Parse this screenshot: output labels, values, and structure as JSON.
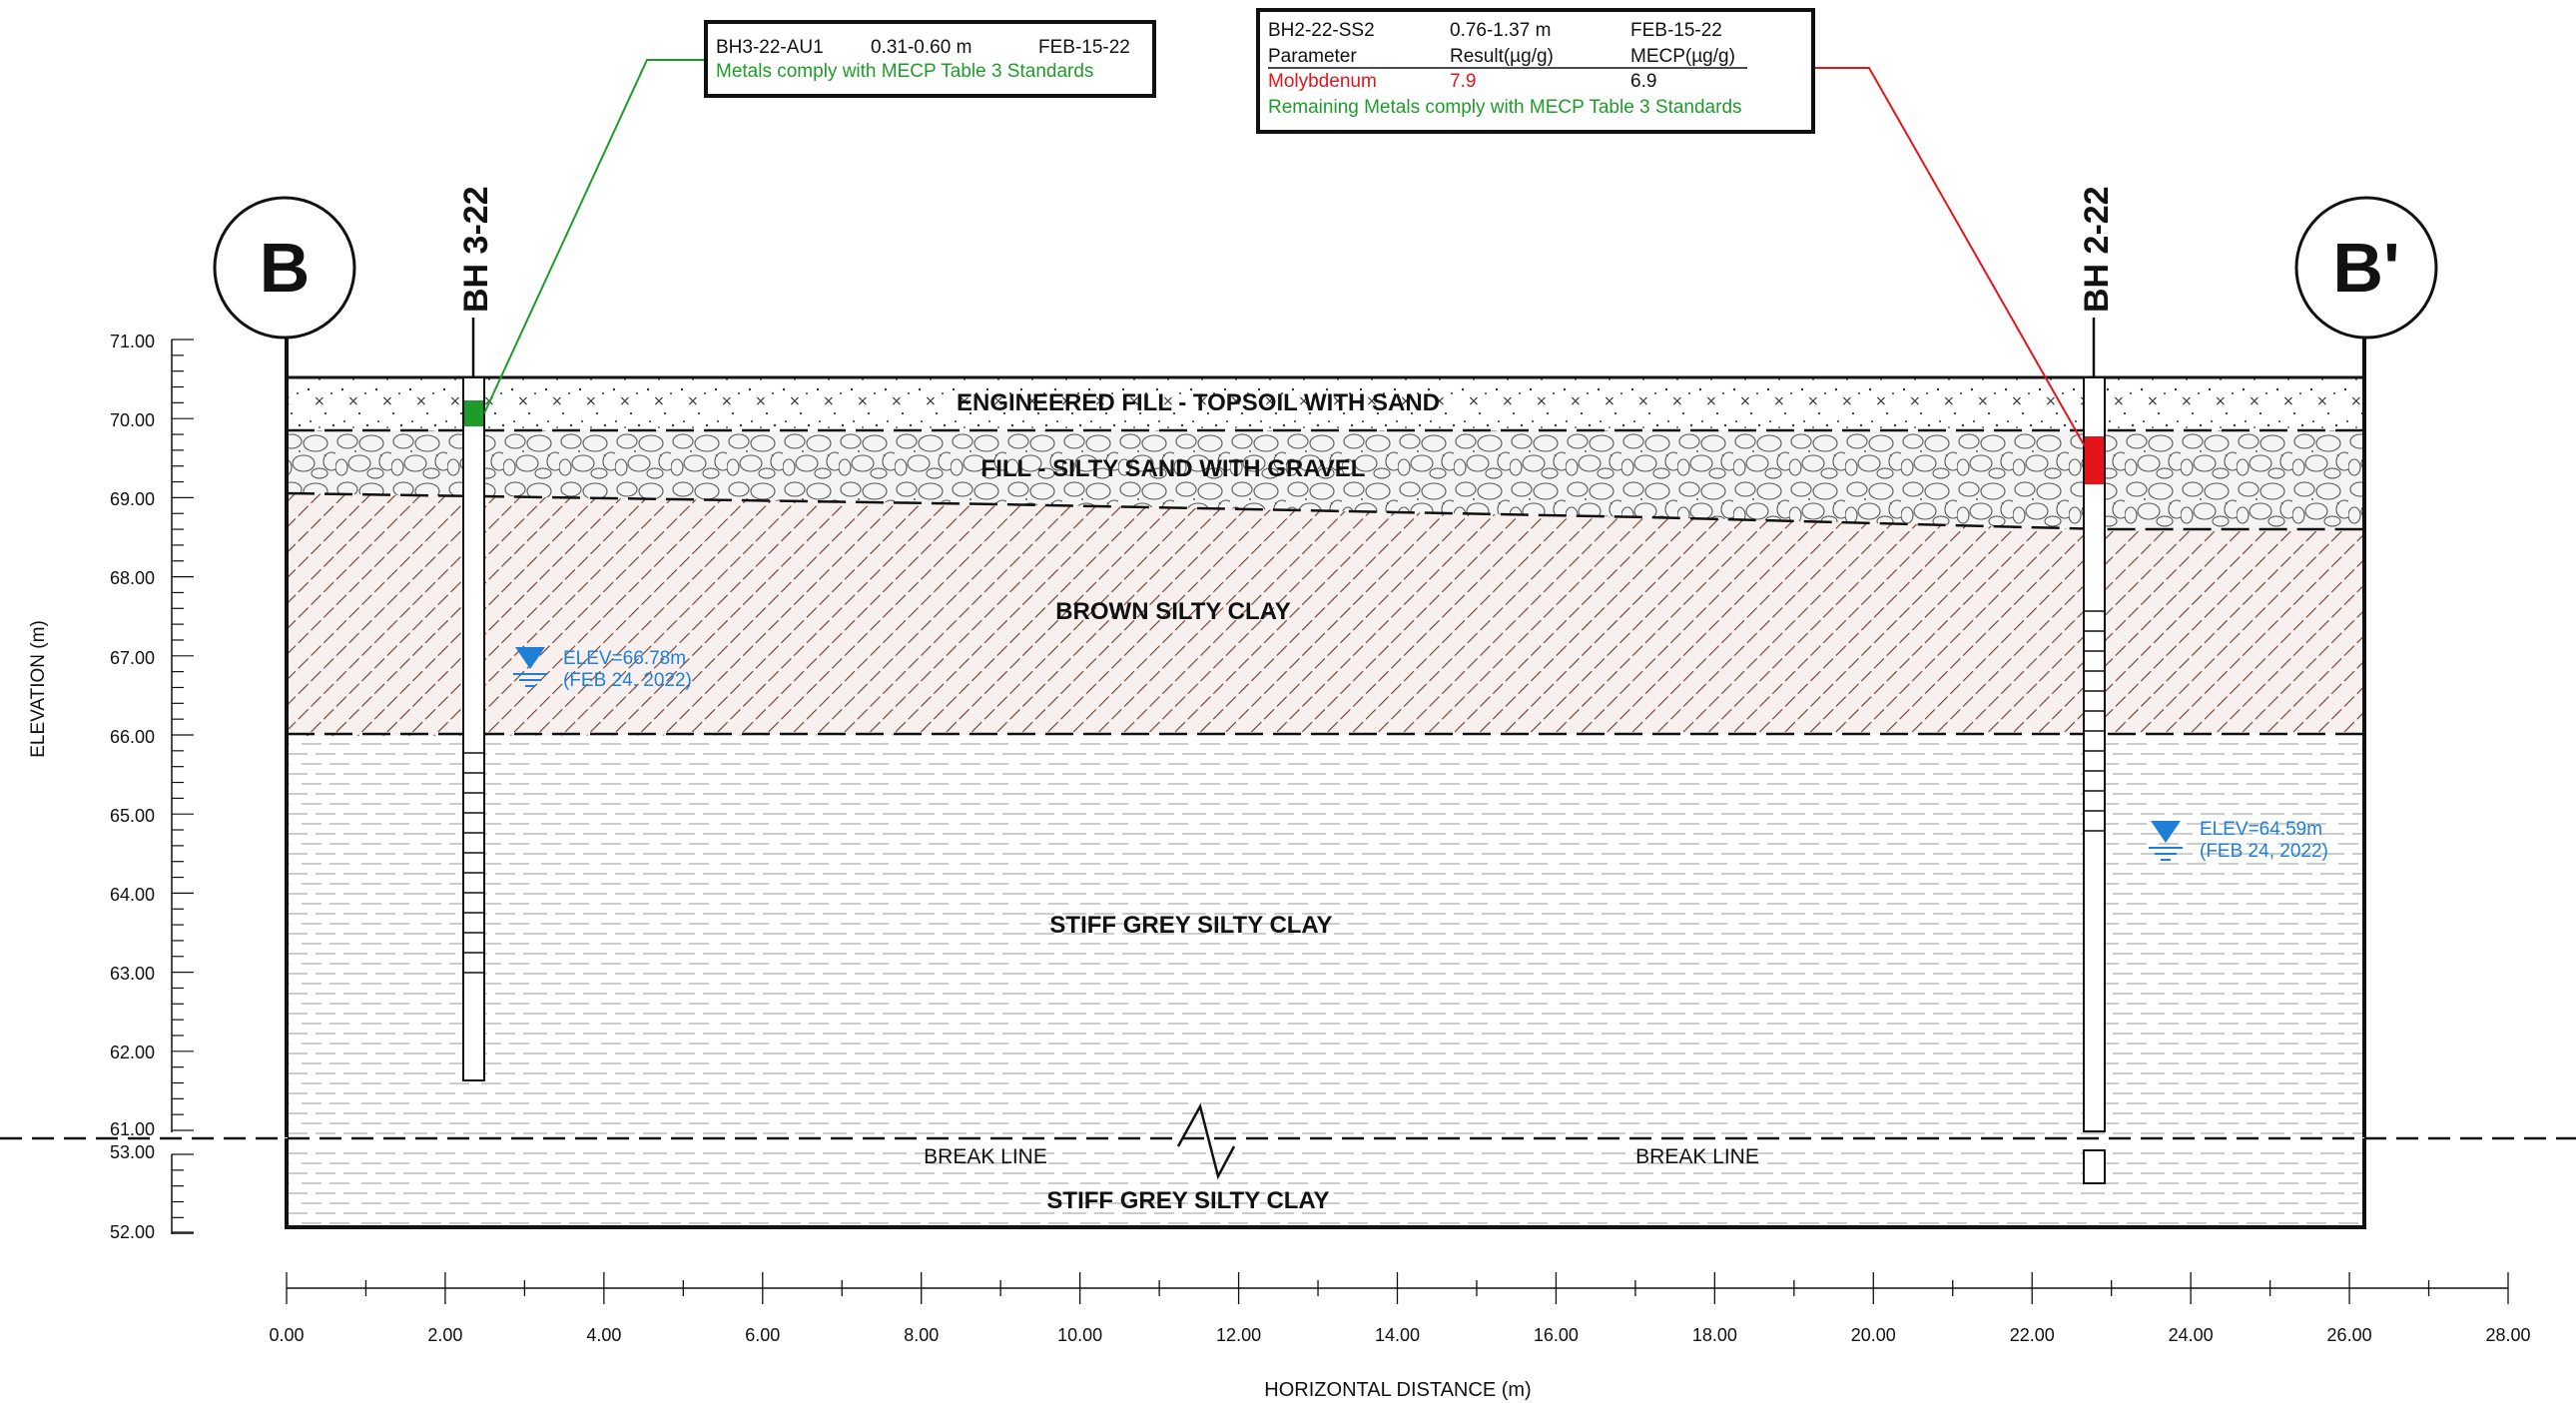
{
  "section": {
    "left_marker": "B",
    "right_marker": "B'"
  },
  "axes": {
    "y_label": "ELEVATION (m)",
    "x_label": "HORIZONTAL DISTANCE (m)",
    "y_ticks_upper": [
      "71.00",
      "70.00",
      "69.00",
      "68.00",
      "67.00",
      "66.00",
      "65.00",
      "64.00",
      "63.00",
      "62.00",
      "61.00"
    ],
    "y_ticks_lower": [
      "53.00",
      "52.00"
    ],
    "x_ticks": [
      "0.00",
      "2.00",
      "4.00",
      "6.00",
      "8.00",
      "10.00",
      "12.00",
      "14.00",
      "16.00",
      "18.00",
      "20.00",
      "22.00",
      "24.00",
      "26.00",
      "28.00"
    ]
  },
  "layers": {
    "topsoil": "ENGINEERED FILL - TOPSOIL WITH SAND",
    "fill": "FILL - SILTY SAND WITH GRAVEL",
    "brown_clay": "BROWN SILTY CLAY",
    "grey_clay_upper": "STIFF GREY SILTY CLAY",
    "grey_clay_lower": "STIFF GREY SILTY CLAY"
  },
  "break_line": {
    "left": "BREAK LINE",
    "right": "BREAK LINE"
  },
  "boreholes": {
    "bh3": {
      "name": "BH 3-22",
      "water_elev": "ELEV=66.78m",
      "water_date": "(FEB 24, 2022)"
    },
    "bh2": {
      "name": "BH 2-22",
      "water_elev": "ELEV=64.59m",
      "water_date": "(FEB 24, 2022)"
    }
  },
  "callouts": {
    "bh3": {
      "sample": "BH3-22-AU1",
      "depth": "0.31-0.60 m",
      "date": "FEB-15-22",
      "note": "Metals comply with MECP Table 3 Standards"
    },
    "bh2": {
      "sample": "BH2-22-SS2",
      "depth": "0.76-1.37 m",
      "date": "FEB-15-22",
      "col1_header": "Parameter",
      "col2_header": "Result(µg/g)",
      "col3_header": "MECP(µg/g)",
      "param": "Molybdenum",
      "result": "7.9",
      "standard": "6.9",
      "note": "Remaining Metals comply with MECP Table 3 Standards"
    }
  },
  "colors": {
    "ink": "#111111",
    "brown_hatch": "#6b3a2a",
    "exceed_red": "#e3141a",
    "comply_green": "#1e9c2a",
    "water_blue": "#1e7fd6"
  }
}
